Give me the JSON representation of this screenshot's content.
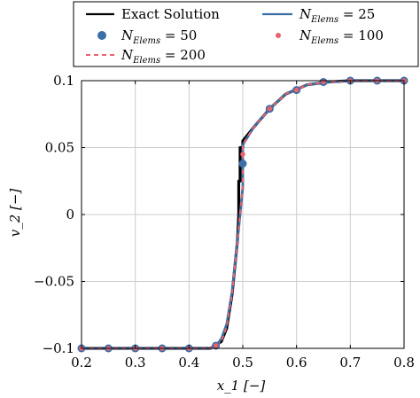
{
  "chart_data": {
    "type": "line",
    "xlabel": "x_1 [−]",
    "ylabel": "v_2 [−]",
    "xlim": [
      0.2,
      0.8
    ],
    "ylim": [
      -0.1,
      0.1
    ],
    "grid": true,
    "legend_position": "top, above plot, two columns",
    "x_ticks": [
      0.2,
      0.3,
      0.4,
      0.5,
      0.6,
      0.7,
      0.8
    ],
    "x_tick_labels": [
      "0.2",
      "0.3",
      "0.4",
      "0.5",
      "0.6",
      "0.7",
      "0.8"
    ],
    "y_ticks": [
      0.1,
      0.05,
      0,
      -0.05,
      -0.1
    ],
    "y_tick_labels": [
      "0.1",
      "0.05",
      "0",
      "−0.05",
      "−0.1"
    ],
    "series": [
      {
        "name": "Exact Solution",
        "style": "line",
        "color": "#000000",
        "x": [
          0.2,
          0.44,
          0.46,
          0.47,
          0.48,
          0.49,
          0.4925,
          0.4925,
          0.495,
          0.495,
          0.5,
          0.5,
          0.52,
          0.55,
          0.58,
          0.62,
          0.66,
          0.7,
          0.8
        ],
        "y": [
          -0.1,
          -0.1,
          -0.095,
          -0.085,
          -0.06,
          -0.02,
          0.0,
          0.025,
          0.025,
          0.05,
          0.05,
          0.055,
          0.065,
          0.079,
          0.09,
          0.097,
          0.099,
          0.1,
          0.1
        ]
      },
      {
        "name": "N_Elems = 25",
        "style": "line",
        "color": "#3a6ea5",
        "x": [
          0.2,
          0.44,
          0.45,
          0.46,
          0.47,
          0.48,
          0.49,
          0.5,
          0.5,
          0.52,
          0.55,
          0.58,
          0.62,
          0.66,
          0.7,
          0.8
        ],
        "y": [
          -0.1,
          -0.1,
          -0.098,
          -0.093,
          -0.082,
          -0.058,
          -0.02,
          0.02,
          0.052,
          0.065,
          0.079,
          0.09,
          0.097,
          0.099,
          0.1,
          0.1
        ]
      },
      {
        "name": "N_Elems = 50",
        "style": "markers",
        "color": "#3a6ea5",
        "x": [
          0.2,
          0.25,
          0.3,
          0.35,
          0.4,
          0.45,
          0.5,
          0.55,
          0.6,
          0.65,
          0.7,
          0.75,
          0.8
        ],
        "y": [
          -0.1,
          -0.1,
          -0.1,
          -0.1,
          -0.1,
          -0.098,
          0.038,
          0.079,
          0.093,
          0.099,
          0.1,
          0.1,
          0.1
        ]
      },
      {
        "name": "N_Elems = 100",
        "style": "markers",
        "color": "#e8636f",
        "x": [
          0.2,
          0.25,
          0.3,
          0.35,
          0.4,
          0.45,
          0.5,
          0.55,
          0.6,
          0.65,
          0.7,
          0.75,
          0.8
        ],
        "y": [
          -0.1,
          -0.1,
          -0.1,
          -0.1,
          -0.1,
          -0.098,
          0.045,
          0.079,
          0.093,
          0.099,
          0.1,
          0.1,
          0.1
        ]
      },
      {
        "name": "N_Elems = 200",
        "style": "dashed",
        "color": "#e8636f",
        "x": [
          0.2,
          0.44,
          0.46,
          0.47,
          0.48,
          0.49,
          0.5,
          0.5,
          0.52,
          0.55,
          0.58,
          0.62,
          0.66,
          0.7,
          0.8
        ],
        "y": [
          -0.1,
          -0.1,
          -0.095,
          -0.084,
          -0.06,
          -0.02,
          0.022,
          0.052,
          0.065,
          0.079,
          0.09,
          0.097,
          0.099,
          0.1,
          0.1
        ]
      }
    ],
    "legend": [
      {
        "label": "Exact Solution",
        "marker": "line",
        "color": "#000000"
      },
      {
        "label_main": "N",
        "label_sub": "Elems",
        "label_rest": " = 25",
        "marker": "line",
        "color": "#3a6ea5"
      },
      {
        "label_main": "N",
        "label_sub": "Elems",
        "label_rest": " = 50",
        "marker": "dot",
        "color": "#3a6ea5"
      },
      {
        "label_main": "N",
        "label_sub": "Elems",
        "label_rest": " = 100",
        "marker": "dot-small",
        "color": "#e8636f"
      },
      {
        "label_main": "N",
        "label_sub": "Elems",
        "label_rest": " = 200",
        "marker": "dashed",
        "color": "#e8636f"
      }
    ]
  }
}
